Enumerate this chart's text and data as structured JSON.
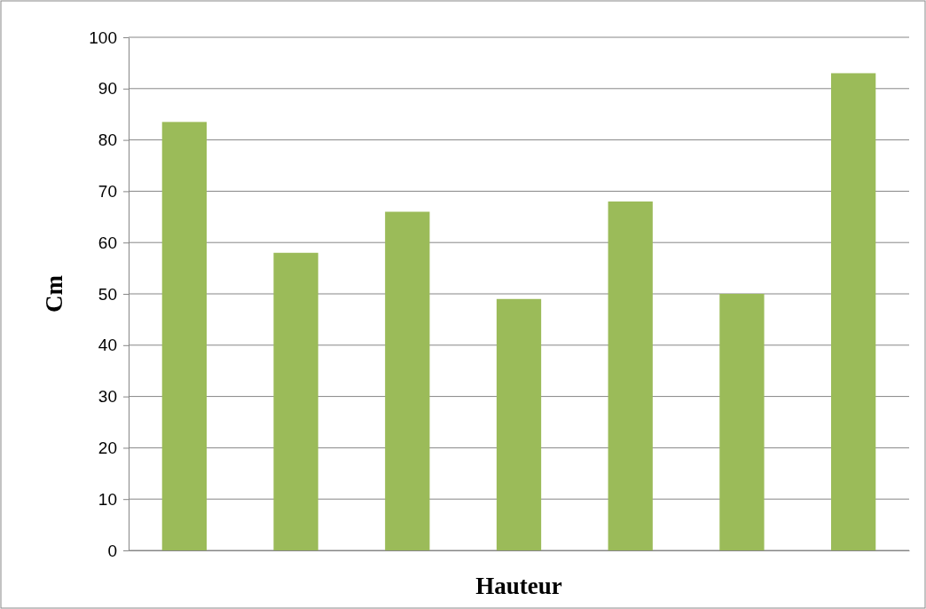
{
  "chart_data": {
    "type": "bar",
    "xlabel": "Hauteur",
    "ylabel": "Cm",
    "categories": [
      null,
      null,
      null,
      null,
      null,
      null,
      null
    ],
    "values": [
      83.5,
      58,
      66,
      49,
      68,
      50,
      93
    ],
    "color": "#9bbb59",
    "ylim": [
      0,
      100
    ],
    "yticks": [
      0,
      10,
      20,
      30,
      40,
      50,
      60,
      70,
      80,
      90,
      100
    ],
    "grid": "y"
  }
}
